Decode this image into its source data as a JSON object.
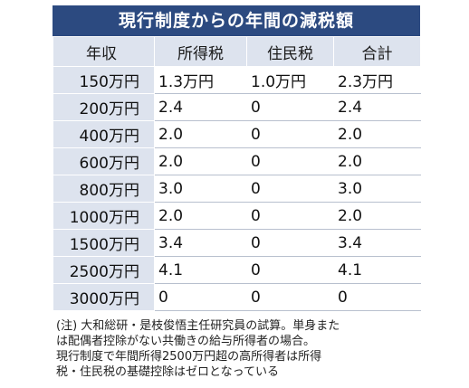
{
  "title": "現行制度からの年間の減税額",
  "columns": [
    "年収",
    "所得税",
    "住民税",
    "合計"
  ],
  "rows": [
    {
      "income": "150万円",
      "income_tax": "1.3万円",
      "resident_tax": "1.0万円",
      "total": "2.3万円"
    },
    {
      "income": "200万円",
      "income_tax": "2.4",
      "resident_tax": "0",
      "total": "2.4"
    },
    {
      "income": "400万円",
      "income_tax": "2.0",
      "resident_tax": "0",
      "total": "2.0"
    },
    {
      "income": "600万円",
      "income_tax": "2.0",
      "resident_tax": "0",
      "total": "2.0"
    },
    {
      "income": "800万円",
      "income_tax": "3.0",
      "resident_tax": "0",
      "total": "3.0"
    },
    {
      "income": "1000万円",
      "income_tax": "2.0",
      "resident_tax": "0",
      "total": "2.0"
    },
    {
      "income": "1500万円",
      "income_tax": "3.4",
      "resident_tax": "0",
      "total": "3.4"
    },
    {
      "income": "2500万円",
      "income_tax": "4.1",
      "resident_tax": "0",
      "total": "4.1"
    },
    {
      "income": "3000万円",
      "income_tax": "0",
      "resident_tax": "0",
      "total": "0"
    }
  ],
  "note": {
    "line1": "(注) 大和総研・是枝俊悟主任研究員の試算。単身また",
    "line2": "は配偶者控除がない共働きの給与所得者の場合。",
    "line3": "現行制度で年間所得2500万円超の高所得者は所得",
    "line4": "税・住民税の基礎控除はゼロとなっている"
  },
  "colors": {
    "title_bg": "#2c4a80",
    "header_bg": "#dde3ee",
    "rule": "#b8c0ce"
  }
}
